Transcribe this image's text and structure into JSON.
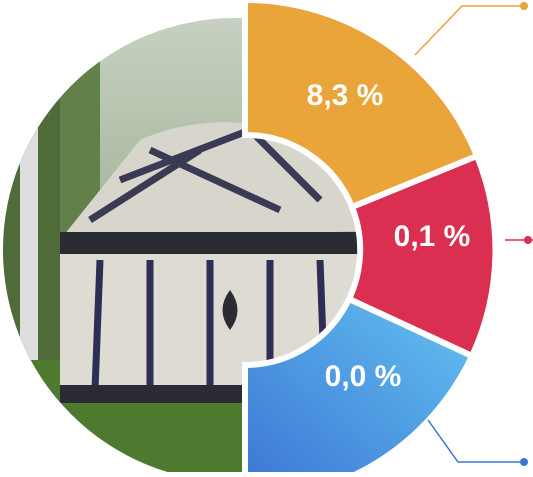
{
  "segments": [
    {
      "label": "8,3 %"
    },
    {
      "label": "0,1 %"
    },
    {
      "label": "0,0 %"
    }
  ]
}
